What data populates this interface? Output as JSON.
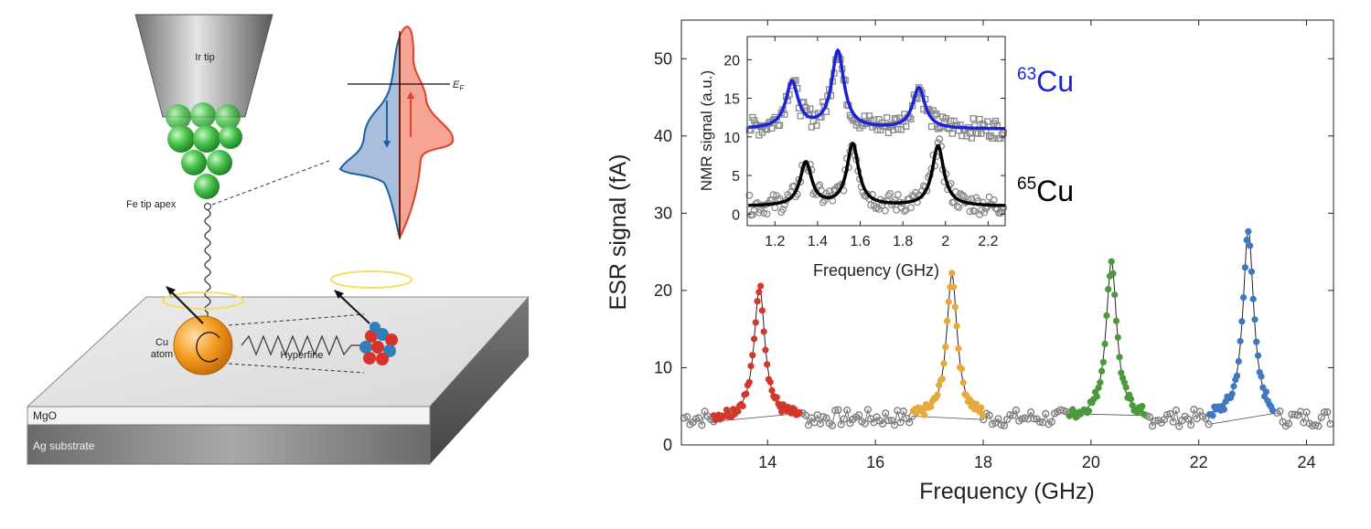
{
  "schematic": {
    "tip_label": "Ir tip",
    "apex_label": "Fe tip apex",
    "fermi_label": "E",
    "fermi_sub": "F",
    "cu_line1": "Cu",
    "cu_line2": "atom",
    "hyperfine_label": "Hyperfine",
    "mgo_label": "MgO",
    "substrate_label": "Ag substrate",
    "colors": {
      "spin_down": "#1f5f9f",
      "spin_down_fill": "#a7bfdc",
      "spin_up": "#e0412c",
      "spin_up_fill": "#f6a594",
      "atom": "#f39a1e",
      "tip_sphere": "#4cc94c"
    }
  },
  "chart_data": [
    {
      "type": "scatter",
      "xlabel": "Frequency (GHz)",
      "ylabel": "ESR signal (fA)",
      "xlim": [
        12.4,
        24.5
      ],
      "ylim": [
        0,
        55
      ],
      "xticks": [
        14,
        16,
        18,
        20,
        22,
        24
      ],
      "yticks": [
        0,
        10,
        20,
        30,
        40,
        50
      ],
      "baseline": 3.5,
      "peaks": [
        {
          "center": 13.85,
          "amplitude": 17.0,
          "width": 0.12,
          "range": [
            13.0,
            14.6
          ],
          "color": "#d1382c"
        },
        {
          "center": 17.42,
          "amplitude": 18.5,
          "width": 0.12,
          "range": [
            16.7,
            18.0
          ],
          "color": "#e6a93a"
        },
        {
          "center": 20.38,
          "amplitude": 20.2,
          "width": 0.12,
          "range": [
            19.6,
            21.0
          ],
          "color": "#4a9a3c"
        },
        {
          "center": 22.92,
          "amplitude": 24.3,
          "width": 0.12,
          "range": [
            22.2,
            23.4
          ],
          "color": "#3f78c2"
        }
      ],
      "background_color": "#7f7f7f"
    },
    {
      "type": "scatter",
      "xlabel": "Frequency (GHz)",
      "ylabel": "NMR signal (a.u.)",
      "xlim": [
        1.07,
        2.28
      ],
      "ylim": [
        -1.5,
        23
      ],
      "xticks": [
        1.2,
        1.4,
        1.6,
        1.8,
        2,
        2.2
      ],
      "yticks": [
        0,
        5,
        10,
        15,
        20
      ],
      "series": [
        {
          "name": "63Cu",
          "name_base": "Cu",
          "name_mass": "63",
          "color": "#1a24d6",
          "marker": "square",
          "baseline": 11,
          "peaks": [
            [
              1.28,
              6.0
            ],
            [
              1.495,
              10.0
            ],
            [
              1.875,
              5.3
            ]
          ],
          "width": 0.035
        },
        {
          "name": "65Cu",
          "name_base": "Cu",
          "name_mass": "65",
          "color": "#000000",
          "marker": "circle",
          "baseline": 1.0,
          "peaks": [
            [
              1.345,
              5.6
            ],
            [
              1.565,
              8.0
            ],
            [
              1.965,
              7.8
            ]
          ],
          "width": 0.033
        }
      ]
    }
  ]
}
